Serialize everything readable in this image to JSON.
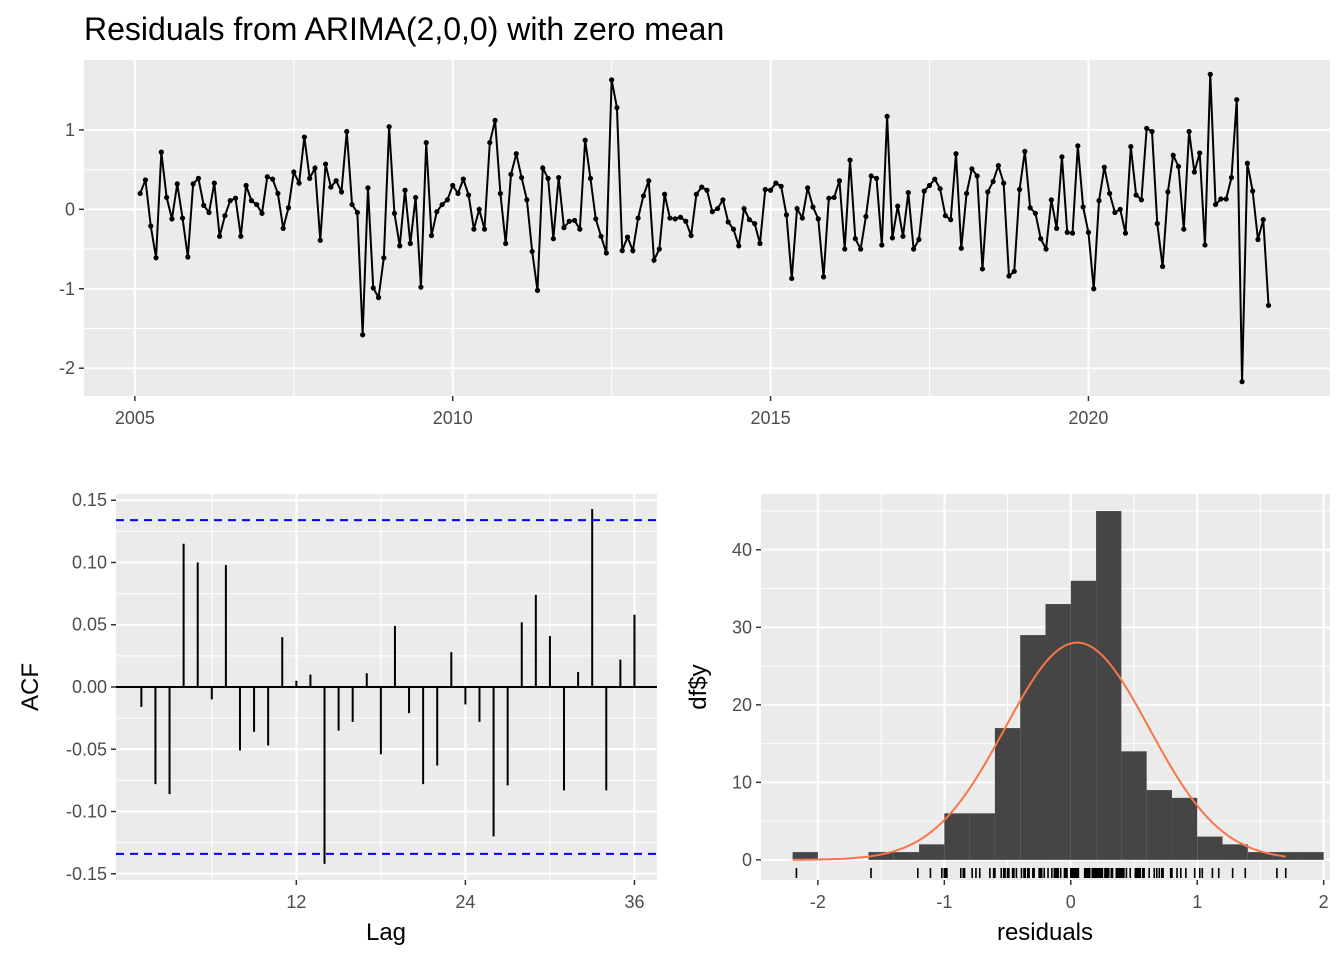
{
  "chart_data": [
    {
      "type": "line",
      "title": "Residuals from ARIMA(2,0,0) with zero mean",
      "x_start": 2005.0833,
      "x_step": 0.0833333,
      "x_ticks": [
        2005,
        2010,
        2015,
        2020
      ],
      "xlim": [
        2004.2,
        2023.8
      ],
      "ylim": [
        -2.35,
        1.88
      ],
      "y_ticks": [
        -2,
        -1,
        0,
        1
      ],
      "colors": {
        "line": "#000000",
        "panel": "#ebebeb",
        "grid": "#ffffff"
      },
      "y": [
        0.2,
        0.37,
        -0.21,
        -0.61,
        0.72,
        0.15,
        -0.12,
        0.32,
        -0.11,
        -0.6,
        0.32,
        0.39,
        0.05,
        -0.04,
        0.33,
        -0.34,
        -0.08,
        0.11,
        0.14,
        -0.34,
        0.3,
        0.11,
        0.06,
        -0.05,
        0.41,
        0.38,
        0.2,
        -0.24,
        0.02,
        0.47,
        0.33,
        0.91,
        0.39,
        0.52,
        -0.39,
        0.57,
        0.28,
        0.36,
        0.22,
        0.98,
        0.06,
        -0.04,
        -1.58,
        0.27,
        -0.99,
        -1.11,
        -0.61,
        1.04,
        -0.05,
        -0.46,
        0.24,
        -0.43,
        0.15,
        -0.98,
        0.84,
        -0.33,
        -0.03,
        0.06,
        0.12,
        0.3,
        0.2,
        0.38,
        0.18,
        -0.25,
        0.0,
        -0.25,
        0.84,
        1.12,
        0.2,
        -0.43,
        0.44,
        0.7,
        0.4,
        0.12,
        -0.53,
        -1.02,
        0.52,
        0.39,
        -0.37,
        0.4,
        -0.23,
        -0.15,
        -0.14,
        -0.25,
        0.87,
        0.39,
        -0.12,
        -0.34,
        -0.55,
        1.63,
        1.28,
        -0.52,
        -0.35,
        -0.52,
        -0.11,
        0.17,
        0.36,
        -0.64,
        -0.5,
        0.19,
        -0.11,
        -0.12,
        -0.1,
        -0.15,
        -0.33,
        0.19,
        0.28,
        0.24,
        -0.03,
        0.01,
        0.12,
        -0.16,
        -0.25,
        -0.46,
        0.01,
        -0.13,
        -0.18,
        -0.43,
        0.25,
        0.24,
        0.33,
        0.29,
        -0.07,
        -0.87,
        0.01,
        -0.11,
        0.27,
        0.03,
        -0.12,
        -0.85,
        0.14,
        0.15,
        0.36,
        -0.5,
        0.62,
        -0.37,
        -0.5,
        -0.09,
        0.42,
        0.39,
        -0.45,
        1.17,
        -0.36,
        0.04,
        -0.34,
        0.21,
        -0.5,
        -0.38,
        0.23,
        0.3,
        0.38,
        0.26,
        -0.08,
        -0.13,
        0.7,
        -0.49,
        0.2,
        0.51,
        0.42,
        -0.75,
        0.22,
        0.35,
        0.55,
        0.33,
        -0.84,
        -0.78,
        0.25,
        0.73,
        0.02,
        -0.05,
        -0.37,
        -0.5,
        0.12,
        -0.24,
        0.66,
        -0.29,
        -0.3,
        0.8,
        0.03,
        -0.29,
        -1.0,
        0.11,
        0.53,
        0.2,
        -0.04,
        0.0,
        -0.3,
        0.79,
        0.18,
        0.12,
        1.02,
        0.98,
        -0.18,
        -0.72,
        0.22,
        0.68,
        0.54,
        -0.25,
        0.98,
        0.47,
        0.71,
        -0.45,
        1.7,
        0.06,
        0.13,
        0.13,
        0.4,
        1.38,
        -2.17,
        0.58,
        0.23,
        -0.38,
        -0.13,
        -1.21
      ]
    },
    {
      "type": "bar",
      "ylabel": "ACF",
      "xlabel": "Lag",
      "x_ticks": [
        12,
        24,
        36
      ],
      "xlim": [
        -0.8,
        37.6
      ],
      "ylim": [
        -0.155,
        0.155
      ],
      "y_ticks": [
        0.15,
        0.1,
        0.05,
        0.0,
        -0.05,
        -0.1,
        -0.15
      ],
      "y_tick_labels": [
        "0.15",
        "0.10",
        "0.05",
        "0.00",
        "-0.05",
        "-0.10",
        "-0.15"
      ],
      "conf_limit": 0.134,
      "colors": {
        "bar": "#000000",
        "conf": "#0000ff",
        "panel": "#ebebeb"
      },
      "lags": [
        1,
        2,
        3,
        4,
        5,
        6,
        7,
        8,
        9,
        10,
        11,
        12,
        13,
        14,
        15,
        16,
        17,
        18,
        19,
        20,
        21,
        22,
        23,
        24,
        25,
        26,
        27,
        28,
        29,
        30,
        31,
        32,
        33,
        34,
        35,
        36
      ],
      "values": [
        -0.016,
        -0.078,
        -0.086,
        0.115,
        0.1,
        -0.01,
        0.098,
        -0.051,
        -0.036,
        -0.047,
        0.04,
        0.005,
        0.01,
        -0.142,
        -0.035,
        -0.028,
        0.011,
        -0.054,
        0.049,
        -0.021,
        -0.078,
        -0.063,
        0.028,
        -0.014,
        -0.028,
        -0.12,
        -0.079,
        0.052,
        0.074,
        0.041,
        -0.083,
        0.012,
        0.143,
        -0.083,
        0.022,
        0.058
      ]
    },
    {
      "type": "bar",
      "ylabel": "df$y",
      "xlabel": "residuals",
      "x_ticks": [
        -2,
        -1,
        0,
        1,
        2
      ],
      "xlim": [
        -2.45,
        2.05
      ],
      "ylim": [
        -2.6,
        47.2
      ],
      "y_ticks": [
        0,
        10,
        20,
        30,
        40
      ],
      "bin_width": 0.2,
      "bin_starts": [
        -2.2,
        -2.0,
        -1.8,
        -1.6,
        -1.4,
        -1.2,
        -1.0,
        -0.8,
        -0.6,
        -0.4,
        -0.2,
        0.0,
        0.2,
        0.4,
        0.6,
        0.8,
        1.0,
        1.2,
        1.4,
        1.6,
        1.8
      ],
      "counts": [
        1,
        0,
        0,
        1,
        1,
        2,
        6,
        6,
        17,
        29,
        33,
        36,
        45,
        14,
        9,
        8,
        3,
        2,
        1,
        1,
        1
      ],
      "normal_curve": {
        "mean": 0.05,
        "sd": 0.57,
        "n": 213
      },
      "rug": [
        -2.17,
        -1.58,
        -1.21,
        -1.11,
        -1.02,
        -1.0,
        -0.99,
        -0.98,
        -0.87,
        -0.85,
        -0.84,
        -0.78,
        -0.75,
        -0.72,
        -0.64,
        -0.61,
        -0.6,
        -0.55,
        -0.53,
        -0.52,
        -0.5,
        -0.49,
        -0.46,
        -0.45,
        -0.43,
        -0.39,
        -0.37,
        -0.36,
        -0.34,
        -0.33,
        -0.3,
        -0.29,
        -0.25,
        -0.24,
        -0.23,
        -0.21,
        -0.18,
        -0.15,
        -0.13,
        -0.12,
        -0.11,
        -0.1,
        -0.08,
        -0.05,
        -0.04,
        -0.03,
        0.0,
        0.01,
        0.02,
        0.03,
        0.04,
        0.05,
        0.06,
        0.11,
        0.12,
        0.13,
        0.14,
        0.15,
        0.17,
        0.18,
        0.19,
        0.2,
        0.21,
        0.22,
        0.23,
        0.24,
        0.25,
        0.27,
        0.28,
        0.29,
        0.3,
        0.32,
        0.33,
        0.36,
        0.37,
        0.38,
        0.39,
        0.4,
        0.41,
        0.42,
        0.44,
        0.47,
        0.51,
        0.52,
        0.53,
        0.54,
        0.55,
        0.57,
        0.58,
        0.62,
        0.66,
        0.68,
        0.7,
        0.72,
        0.73,
        0.79,
        0.8,
        0.84,
        0.87,
        0.91,
        0.98,
        1.02,
        1.04,
        1.12,
        1.17,
        1.28,
        1.38,
        1.63,
        1.7
      ],
      "colors": {
        "bar": "#454545",
        "curve": "#f8764a",
        "panel": "#ebebeb"
      }
    }
  ]
}
